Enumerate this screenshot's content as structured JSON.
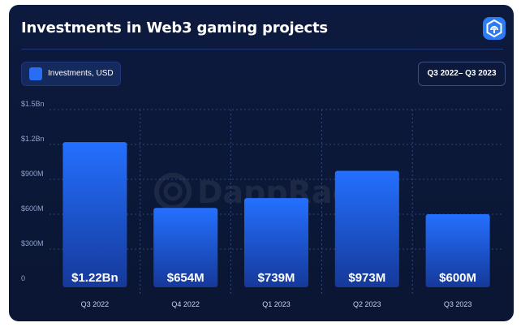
{
  "title": "Investments in Web3 gaming projects",
  "legend": {
    "label": "Investments, USD",
    "color": "#2a6df5"
  },
  "period": "Q3 2022– Q3 2023",
  "watermark": "DappRadar",
  "colors": {
    "background": "#0b1838",
    "bar_top": "#1f6bff",
    "bar_bottom": "#163c9c",
    "accent": "#2d7cf6"
  },
  "chart_data": {
    "type": "bar",
    "categories": [
      "Q3 2022",
      "Q4 2022",
      "Q1 2023",
      "Q2 2023",
      "Q3 2023"
    ],
    "series": [
      {
        "name": "Investments, USD",
        "values": [
          1220000000,
          654000000,
          739000000,
          973000000,
          600000000
        ]
      }
    ],
    "data_labels": [
      "$1.22Bn",
      "$654M",
      "$739M",
      "$973M",
      "$600M"
    ],
    "yticks": [
      {
        "value": 0,
        "label": "0"
      },
      {
        "value": 300000000,
        "label": "$300M"
      },
      {
        "value": 600000000,
        "label": "$600M"
      },
      {
        "value": 900000000,
        "label": "$900M"
      },
      {
        "value": 1200000000,
        "label": "$1.2Bn"
      },
      {
        "value": 1500000000,
        "label": "$1.5Bn"
      }
    ],
    "ylim": [
      0,
      1500000000
    ],
    "title": "Investments in Web3 gaming projects",
    "xlabel": "",
    "ylabel": "",
    "grid": true,
    "legend_position": "top-left"
  }
}
